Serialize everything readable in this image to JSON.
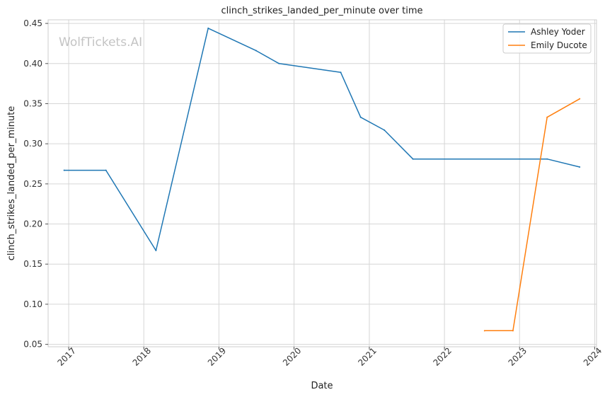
{
  "chart_data": {
    "type": "line",
    "title": "clinch_strikes_landed_per_minute over time",
    "xlabel": "Date",
    "ylabel": "clinch_strikes_landed_per_minute",
    "watermark": "WolfTickets.AI",
    "xlim": [
      "2016-09-23",
      "2024-01-10"
    ],
    "ylim": [
      0.047,
      0.4545
    ],
    "x_ticks": [
      "2017",
      "2018",
      "2019",
      "2020",
      "2021",
      "2022",
      "2023",
      "2024"
    ],
    "y_ticks": [
      "0.05",
      "0.10",
      "0.15",
      "0.20",
      "0.25",
      "0.30",
      "0.35",
      "0.40",
      "0.45"
    ],
    "grid": true,
    "legend_position": "top-right",
    "series": [
      {
        "name": "Ashley Yoder",
        "color": "#1f77b4",
        "points": [
          {
            "x": "2016-12-10",
            "y": 0.267
          },
          {
            "x": "2017-07-01",
            "y": 0.267
          },
          {
            "x": "2018-03-01",
            "y": 0.167
          },
          {
            "x": "2018-11-10",
            "y": 0.444
          },
          {
            "x": "2019-07-01",
            "y": 0.416
          },
          {
            "x": "2019-10-20",
            "y": 0.4
          },
          {
            "x": "2020-08-15",
            "y": 0.389
          },
          {
            "x": "2020-11-20",
            "y": 0.333
          },
          {
            "x": "2021-03-15",
            "y": 0.317
          },
          {
            "x": "2021-08-01",
            "y": 0.281
          },
          {
            "x": "2023-05-15",
            "y": 0.281
          },
          {
            "x": "2023-10-20",
            "y": 0.271
          }
        ]
      },
      {
        "name": "Emily Ducote",
        "color": "#ff7f0e",
        "points": [
          {
            "x": "2022-07-15",
            "y": 0.067
          },
          {
            "x": "2022-11-30",
            "y": 0.067
          },
          {
            "x": "2023-05-15",
            "y": 0.333
          },
          {
            "x": "2023-10-20",
            "y": 0.356
          }
        ]
      }
    ]
  }
}
